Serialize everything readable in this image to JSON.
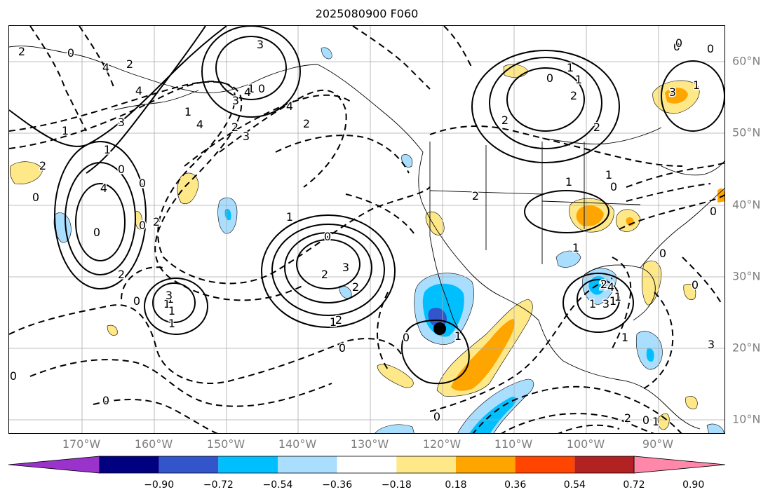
{
  "title": "2025080900 F060",
  "lon_labels": [
    "170°W",
    "160°W",
    "150°W",
    "140°W",
    "130°W",
    "120°W",
    "110°W",
    "100°W",
    "90°W"
  ],
  "lat_labels": [
    "60°N",
    "50°N",
    "40°N",
    "30°N",
    "20°N",
    "10°N"
  ],
  "colorbar": {
    "colors": [
      "#9933cc",
      "#000080",
      "#3355cc",
      "#00bfff",
      "#aadeff",
      "#ffffff",
      "#ffe888",
      "#ffa500",
      "#ff4500",
      "#b22222",
      "#ff88aa"
    ],
    "tick_labels": [
      "−0.90",
      "−0.72",
      "−0.54",
      "−0.36",
      "−0.18",
      "0.18",
      "0.36",
      "0.54",
      "0.72",
      "0.90"
    ]
  },
  "contour_labels": [
    "2",
    "0",
    "2",
    "4",
    "3",
    "4",
    "0",
    "1",
    "1",
    "4",
    "3",
    "3",
    "2",
    "4",
    "1",
    "2",
    "0",
    "1",
    "0",
    "0",
    "2",
    "1",
    "1",
    "1",
    "0",
    "4",
    "0",
    "2",
    "0",
    "4",
    "3",
    "2",
    "1",
    "2",
    "0",
    "3",
    "2",
    "1",
    "0",
    "0",
    "3",
    "1",
    "2",
    "0",
    "1",
    "0",
    "2",
    "1",
    "0",
    "1",
    "2",
    "2",
    "2",
    "1",
    "0",
    "1",
    "0",
    "0",
    "3",
    "1",
    "0",
    "0",
    "0",
    "0",
    "1",
    "1",
    "1",
    "1",
    "3",
    "4",
    "2",
    "1",
    "1",
    "3",
    "2",
    "0",
    "1",
    "0"
  ],
  "marker": {
    "label": "storm center",
    "color": "#000000"
  }
}
